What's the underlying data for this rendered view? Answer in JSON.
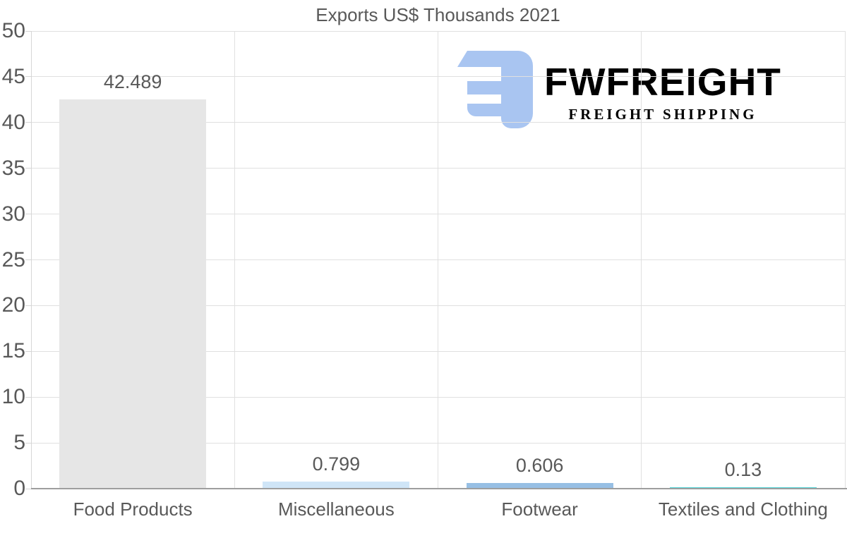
{
  "chart_data": {
    "type": "bar",
    "title": "Exports US$ Thousands 2021",
    "categories": [
      "Food Products",
      "Miscellaneous",
      "Footwear",
      "Textiles and Clothing"
    ],
    "values": [
      42.489,
      0.799,
      0.606,
      0.13
    ],
    "value_labels": [
      "42.489",
      "0.799",
      "0.606",
      "0.13"
    ],
    "bar_colors": [
      "#e6e6e6",
      "#cfe5f7",
      "#97bfe4",
      "#57d7d9"
    ],
    "xlabel": "",
    "ylabel": "",
    "ylim": [
      0,
      50
    ],
    "ytick_step": 5,
    "grid": true,
    "legend": "none"
  },
  "watermark": {
    "brand": "FWFREIGHT",
    "tagline": "FREIGHT SHIPPING",
    "icon": "fwfreight-e-mark",
    "icon_color": "#a9c5f1",
    "brand_color": "#a3c2f0",
    "tagline_color": "#a9bfe8"
  },
  "style": {
    "background": "#ffffff",
    "text_color": "#595959",
    "gridline_color": "#e0e0e0",
    "axis_line_color": "#d6d6d6",
    "baseline_color": "#9e9e9e"
  }
}
